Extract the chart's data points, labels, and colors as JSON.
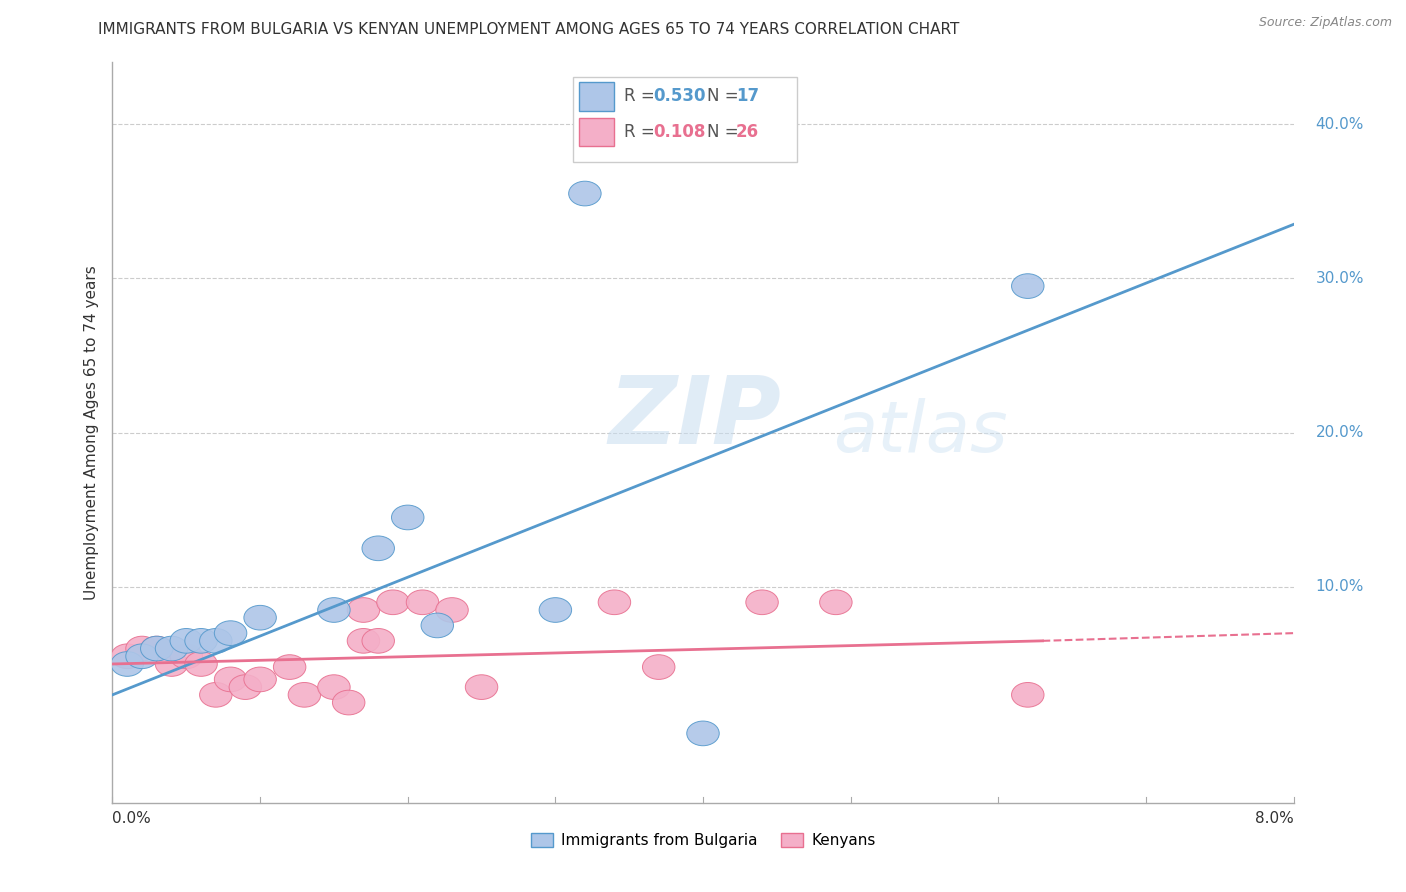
{
  "title": "IMMIGRANTS FROM BULGARIA VS KENYAN UNEMPLOYMENT AMONG AGES 65 TO 74 YEARS CORRELATION CHART",
  "source": "Source: ZipAtlas.com",
  "ylabel": "Unemployment Among Ages 65 to 74 years",
  "ytick_labels": [
    "10.0%",
    "20.0%",
    "30.0%",
    "40.0%"
  ],
  "ytick_values": [
    0.1,
    0.2,
    0.3,
    0.4
  ],
  "xlim": [
    0.0,
    0.08
  ],
  "ylim": [
    -0.04,
    0.44
  ],
  "watermark_line1": "ZIP",
  "watermark_line2": "atlas",
  "legend_r1_pre": "R = ",
  "legend_r1_val": "0.530",
  "legend_n1_pre": "N = ",
  "legend_n1_val": "17",
  "legend_r2_pre": "R = ",
  "legend_r2_val": "0.108",
  "legend_n2_pre": "N = ",
  "legend_n2_val": "26",
  "bulgaria_color": "#aec6e8",
  "kenya_color": "#f4afc8",
  "bulgaria_edge_color": "#5599cc",
  "kenya_edge_color": "#e87090",
  "bulgaria_line_color": "#5599cc",
  "kenya_line_color": "#e87090",
  "bg_color": "#ffffff",
  "grid_color": "#cccccc",
  "bulgaria_points_x": [
    0.001,
    0.002,
    0.003,
    0.004,
    0.005,
    0.006,
    0.007,
    0.008,
    0.01,
    0.015,
    0.018,
    0.02,
    0.022,
    0.03,
    0.032,
    0.04,
    0.062
  ],
  "bulgaria_points_y": [
    0.05,
    0.055,
    0.06,
    0.06,
    0.065,
    0.065,
    0.065,
    0.07,
    0.08,
    0.085,
    0.125,
    0.145,
    0.075,
    0.085,
    0.355,
    0.005,
    0.295
  ],
  "kenya_points_x": [
    0.001,
    0.002,
    0.003,
    0.004,
    0.005,
    0.006,
    0.007,
    0.008,
    0.009,
    0.01,
    0.012,
    0.013,
    0.015,
    0.016,
    0.017,
    0.017,
    0.018,
    0.019,
    0.021,
    0.023,
    0.025,
    0.034,
    0.037,
    0.044,
    0.049,
    0.062
  ],
  "kenya_points_y": [
    0.055,
    0.06,
    0.06,
    0.05,
    0.055,
    0.05,
    0.03,
    0.04,
    0.035,
    0.04,
    0.048,
    0.03,
    0.035,
    0.025,
    0.085,
    0.065,
    0.065,
    0.09,
    0.09,
    0.085,
    0.035,
    0.09,
    0.048,
    0.09,
    0.09,
    0.03
  ],
  "legend_label1": "Immigrants from Bulgaria",
  "legend_label2": "Kenyans"
}
